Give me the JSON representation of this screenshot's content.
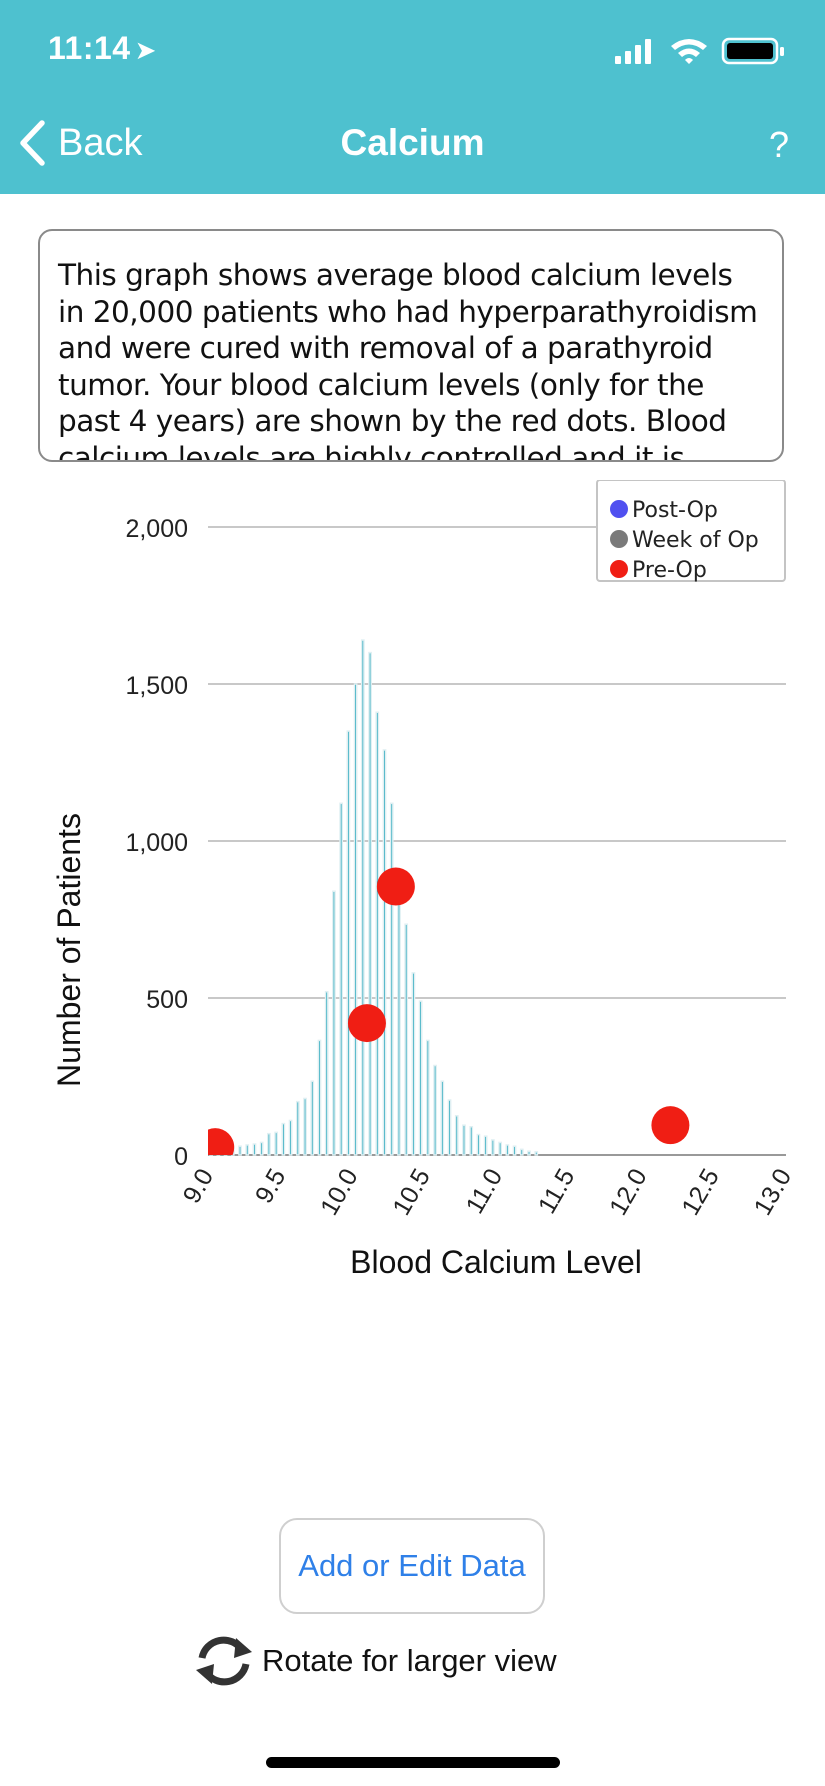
{
  "status_bar": {
    "time": "11:14",
    "location_icon": "location-arrow-icon",
    "signal_icon": "cellular-signal-icon",
    "wifi_icon": "wifi-icon",
    "battery_icon": "battery-icon"
  },
  "nav": {
    "back_label": "Back",
    "title": "Calcium",
    "help_label": "?"
  },
  "description": "This graph shows average blood calcium levels in 20,000 patients who had hyperparathyroidism and were cured with removal of a parathyroid tumor. Your blood calcium levels (only for the past 4 years) are shown by the red dots. Blood calcium levels are highly controlled and it is",
  "chart_data": {
    "type": "bar",
    "xlabel": "Blood Calcium Level",
    "ylabel": "Number of Patients",
    "xlim": [
      9.0,
      13.0
    ],
    "ylim": [
      0,
      2000
    ],
    "x_ticks": [
      "9.0",
      "9.5",
      "10.0",
      "10.5",
      "11.0",
      "11.5",
      "12.0",
      "12.5",
      "13.0"
    ],
    "y_ticks": [
      "0",
      "500",
      "1,000",
      "1,500",
      "2,000"
    ],
    "legend": [
      {
        "name": "Post-Op",
        "color": "#5050f0"
      },
      {
        "name": "Week of Op",
        "color": "#7a7a7a"
      },
      {
        "name": "Pre-Op",
        "color": "#f01e14"
      }
    ],
    "bar_color": "#2aa8bd",
    "bins_start": 9.0,
    "bin_width": 0.1,
    "histogram": [
      [
        8,
        12
      ],
      [
        15,
        20
      ],
      [
        28,
        32
      ],
      [
        35,
        40
      ],
      [
        68,
        72
      ],
      [
        100,
        110
      ],
      [
        170,
        180
      ],
      [
        235,
        365
      ],
      [
        520,
        840
      ],
      [
        1120,
        1350
      ],
      [
        1500,
        1640
      ],
      [
        1600,
        1410
      ],
      [
        1290,
        1120
      ],
      [
        890,
        735
      ],
      [
        580,
        490
      ],
      [
        365,
        285
      ],
      [
        235,
        175
      ],
      [
        125,
        95
      ],
      [
        90,
        65
      ],
      [
        60,
        48
      ],
      [
        40,
        32
      ],
      [
        28,
        18
      ],
      [
        12,
        10
      ]
    ],
    "patient_points": [
      {
        "series": "Pre-Op",
        "x": 9.05,
        "y": 25
      },
      {
        "series": "Pre-Op",
        "x": 10.1,
        "y": 420
      },
      {
        "series": "Pre-Op",
        "x": 10.3,
        "y": 855
      },
      {
        "series": "Pre-Op",
        "x": 12.2,
        "y": 95
      }
    ]
  },
  "actions": {
    "add_edit_label": "Add or Edit Data",
    "rotate_label": "Rotate for larger view",
    "rotate_icon": "rotate-icon"
  }
}
